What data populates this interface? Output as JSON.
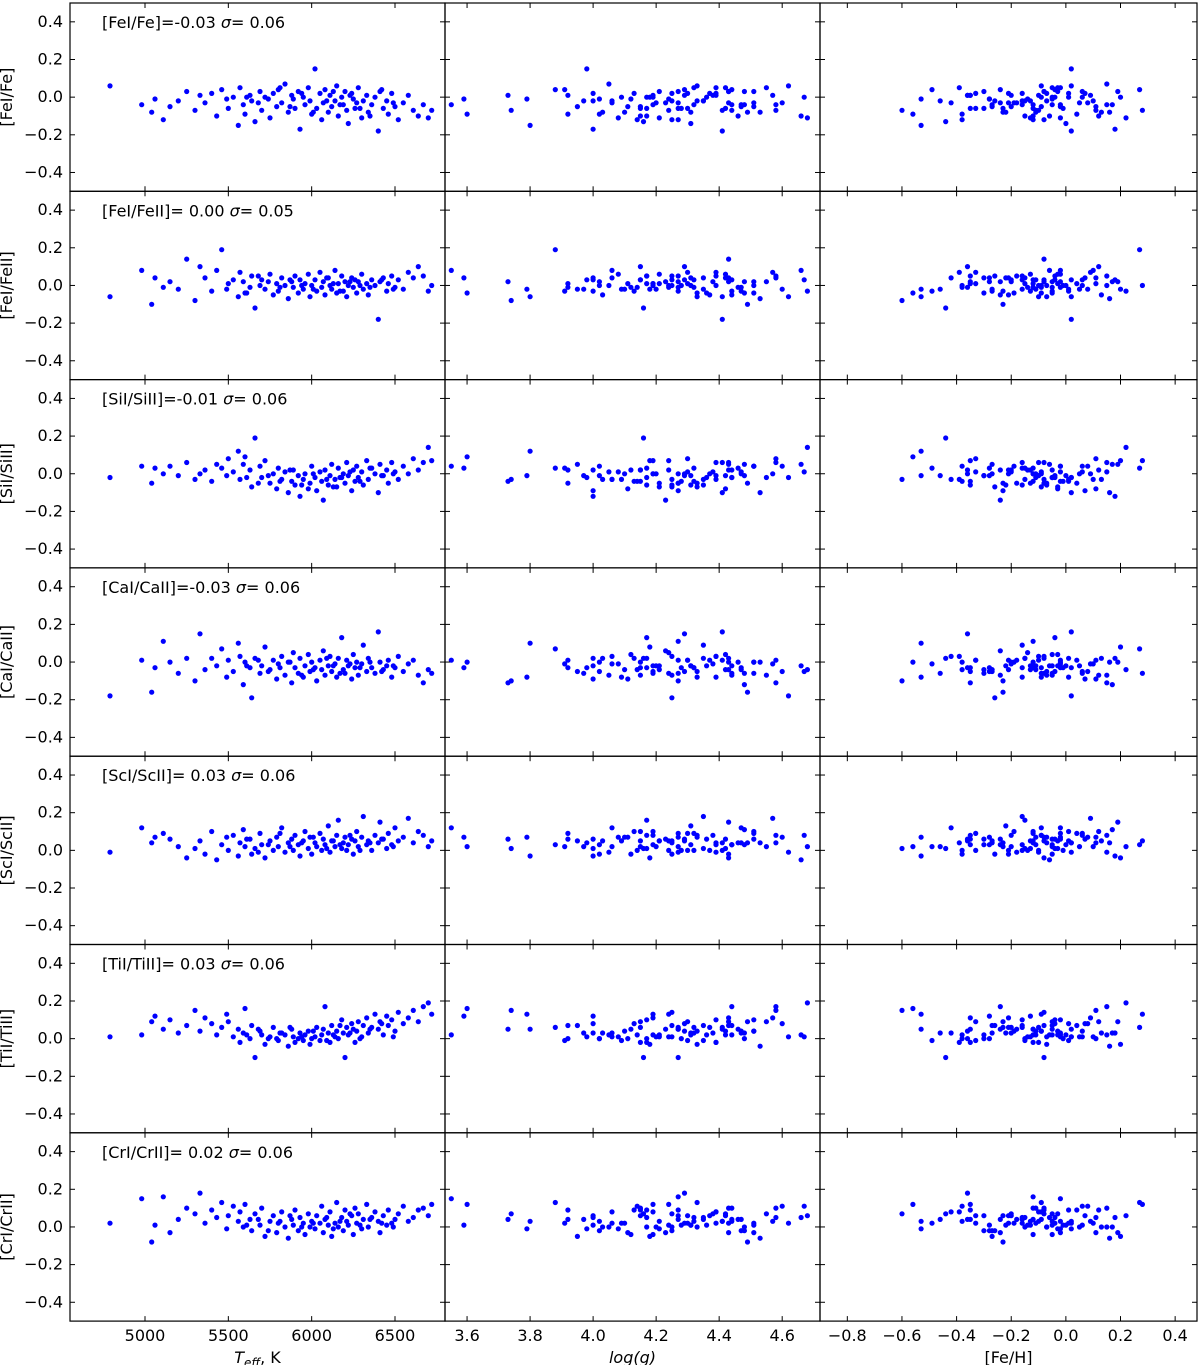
{
  "chart_data": {
    "type": "scatter",
    "layout": "7x3 grid, shared y per row, shared x per column",
    "columns": [
      {
        "xlabel_main": "T",
        "xlabel_sub": "eff",
        "xlabel_suffix": ", K",
        "xlim": [
          4550,
          6800
        ],
        "xticks": [
          5000,
          5500,
          6000,
          6500
        ],
        "xtick_labels": [
          "5000",
          "5500",
          "6000",
          "6500"
        ],
        "xkey": "teff"
      },
      {
        "xlabel": "log(g)",
        "xlim": [
          3.53,
          4.72
        ],
        "xticks": [
          3.6,
          3.8,
          4.0,
          4.2,
          4.4,
          4.6
        ],
        "xtick_labels": [
          "3.6",
          "3.8",
          "4.0",
          "4.2",
          "4.4",
          "4.6"
        ],
        "xkey": "logg"
      },
      {
        "xlabel": "[Fe/H]",
        "xlim": [
          -0.9,
          0.48
        ],
        "xticks": [
          -0.8,
          -0.6,
          -0.4,
          -0.2,
          0.0,
          0.2,
          0.4
        ],
        "xtick_labels": [
          "−0.8",
          "−0.6",
          "−0.4",
          "−0.2",
          "0.0",
          "0.2",
          "0.4"
        ],
        "xkey": "feh"
      }
    ],
    "ylim": [
      -0.5,
      0.5
    ],
    "yticks": [
      -0.4,
      -0.2,
      0.0,
      0.2,
      0.4
    ],
    "ytick_labels": [
      "−0.4",
      "−0.2",
      "0.0",
      "0.2",
      "0.4"
    ],
    "rows": [
      {
        "ylabel": "[FeI/Fe]",
        "annotation_text": "[FeI/Fe]=-0.03 ",
        "sigma_text": "= 0.06",
        "mean": -0.03,
        "sigma": 0.06
      },
      {
        "ylabel": "[FeI/FeII]",
        "annotation_text": "[FeI/FeII]= 0.00 ",
        "sigma_text": "= 0.05",
        "mean": 0.0,
        "sigma": 0.05
      },
      {
        "ylabel": "[SiI/SiII]",
        "annotation_text": "[SiI/SiII]=-0.01 ",
        "sigma_text": "= 0.06",
        "mean": -0.01,
        "sigma": 0.06
      },
      {
        "ylabel": "[CaI/CaII]",
        "annotation_text": "[CaI/CaII]=-0.03 ",
        "sigma_text": "= 0.06",
        "mean": -0.03,
        "sigma": 0.06
      },
      {
        "ylabel": "[ScI/ScII]",
        "annotation_text": "[ScI/ScII]= 0.03 ",
        "sigma_text": "= 0.06",
        "mean": 0.03,
        "sigma": 0.06
      },
      {
        "ylabel": "[TiI/TiII]",
        "annotation_text": "[TiI/TiII]= 0.03 ",
        "sigma_text": "= 0.06",
        "mean": 0.03,
        "sigma": 0.06
      },
      {
        "ylabel": "[CrI/CrII]",
        "annotation_text": "[CrI/CrII]= 0.02 ",
        "sigma_text": "= 0.06",
        "mean": 0.02,
        "sigma": 0.06
      }
    ],
    "stars": [
      [
        4790,
        4.62,
        0.02
      ],
      [
        4980,
        3.55,
        -0.02
      ],
      [
        5040,
        4.49,
        -0.23
      ],
      [
        5060,
        3.59,
        -0.28
      ],
      [
        5110,
        4.27,
        -0.12
      ],
      [
        5150,
        4.51,
        -0.02
      ],
      [
        5200,
        3.97,
        -0.46
      ],
      [
        5250,
        4.43,
        -0.08
      ],
      [
        5300,
        3.74,
        -0.6
      ],
      [
        5330,
        4.29,
        -0.36
      ],
      [
        5360,
        4.43,
        -0.21
      ],
      [
        5400,
        4.13,
        0.01
      ],
      [
        5430,
        4.66,
        -0.06
      ],
      [
        5460,
        3.88,
        0.27
      ],
      [
        5490,
        3.79,
        -0.53
      ],
      [
        5500,
        4.3,
        -0.33
      ],
      [
        5530,
        4.67,
        0.06
      ],
      [
        5560,
        3.8,
        -0.53
      ],
      [
        5570,
        4.39,
        -0.39
      ],
      [
        5590,
        4.48,
        0.17
      ],
      [
        5600,
        3.6,
        -0.56
      ],
      [
        5630,
        3.92,
        -0.36
      ],
      [
        5640,
        4.25,
        -0.26
      ],
      [
        5660,
        4.16,
        -0.44
      ],
      [
        5690,
        4.51,
        0.06
      ],
      [
        5700,
        4.44,
        -0.11
      ],
      [
        5720,
        4.18,
        0.2
      ],
      [
        5750,
        4.21,
        -0.13
      ],
      [
        5770,
        4.37,
        -0.21
      ],
      [
        5790,
        4.11,
        0.11
      ],
      [
        5800,
        3.91,
        -0.49
      ],
      [
        5820,
        4.06,
        -0.42
      ],
      [
        5840,
        4.05,
        0.15
      ],
      [
        5860,
        4.53,
        0.16
      ],
      [
        5880,
        3.73,
        -0.35
      ],
      [
        5890,
        4.24,
        -0.14
      ],
      [
        5900,
        4.17,
        -0.35
      ],
      [
        5920,
        4.48,
        -0.3
      ],
      [
        5930,
        4.0,
        0.18
      ],
      [
        5950,
        4.09,
        0.01
      ],
      [
        5960,
        4.19,
        -0.12
      ],
      [
        5980,
        4.42,
        -0.03
      ],
      [
        5990,
        4.33,
        -0.07
      ],
      [
        6000,
        4.02,
        -0.38
      ],
      [
        6020,
        3.98,
        0.02
      ],
      [
        6030,
        4.27,
        -0.23
      ],
      [
        6050,
        4.3,
        -0.33
      ],
      [
        6060,
        4.14,
        -0.38
      ],
      [
        6070,
        4.23,
        -0.24
      ],
      [
        6080,
        4.44,
        -0.24
      ],
      [
        6100,
        4.31,
        -0.22
      ],
      [
        6110,
        4.39,
        -0.1
      ],
      [
        6120,
        3.95,
        -0.27
      ],
      [
        6140,
        4.06,
        0.1
      ],
      [
        6150,
        4.33,
        -0.09
      ],
      [
        6160,
        4.17,
        -0.15
      ],
      [
        6180,
        4.17,
        -0.04
      ],
      [
        6190,
        4.47,
        -0.27
      ],
      [
        6200,
        4.27,
        -0.08
      ],
      [
        6210,
        4.41,
        -0.1
      ],
      [
        6220,
        4.31,
        0.0
      ],
      [
        6240,
        4.0,
        0.07
      ],
      [
        6250,
        4.12,
        -0.05
      ],
      [
        6260,
        4.15,
        -0.12
      ],
      [
        6270,
        4.51,
        -0.19
      ],
      [
        6280,
        4.55,
        -0.05
      ],
      [
        6300,
        4.08,
        -0.02
      ],
      [
        6310,
        4.35,
        -0.16
      ],
      [
        6330,
        4.19,
        -0.35
      ],
      [
        6340,
        4.03,
        0.13
      ],
      [
        6360,
        4.32,
        -0.16
      ],
      [
        6380,
        4.19,
        -0.09
      ],
      [
        6400,
        4.41,
        0.02
      ],
      [
        6410,
        4.43,
        0.19
      ],
      [
        6430,
        4.42,
        -0.3
      ],
      [
        6450,
        4.0,
        -0.13
      ],
      [
        6460,
        3.92,
        0.04
      ],
      [
        6480,
        4.39,
        -0.16
      ],
      [
        6500,
        4.47,
        -0.09
      ],
      [
        6520,
        4.25,
        -0.08
      ],
      [
        6550,
        4.6,
        0.08
      ],
      [
        6580,
        4.57,
        0.09
      ],
      [
        6610,
        4.58,
        0.11
      ],
      [
        6640,
        4.15,
        0.12
      ],
      [
        6670,
        4.58,
        0.15
      ],
      [
        6700,
        4.68,
        0.22
      ],
      [
        6720,
        4.24,
        0.28
      ],
      [
        5610,
        4.36,
        -0.05
      ],
      [
        5680,
        4.27,
        -0.18
      ],
      [
        5740,
        4.02,
        -0.28
      ],
      [
        5810,
        4.32,
        -0.02
      ],
      [
        5870,
        4.15,
        -0.2
      ],
      [
        5940,
        4.25,
        -0.07
      ],
      [
        6010,
        4.1,
        -0.11
      ],
      [
        6090,
        4.35,
        -0.15
      ],
      [
        6130,
        4.21,
        -0.03
      ],
      [
        6170,
        4.44,
        -0.05
      ],
      [
        6230,
        4.38,
        -0.2
      ],
      [
        6290,
        4.28,
        -0.01
      ],
      [
        6350,
        4.46,
        -0.12
      ],
      [
        6420,
        4.29,
        -0.04
      ],
      [
        6490,
        4.2,
        0.05
      ]
    ],
    "residuals": {
      "FeI_Fe": [
        0.06,
        -0.04,
        -0.08,
        -0.01,
        -0.12,
        -0.05,
        -0.02,
        0.03,
        -0.07,
        0.01,
        -0.03,
        0.02,
        -0.1,
        0.04,
        -0.01,
        -0.06,
        0.0,
        -0.15,
        0.05,
        -0.04,
        -0.09,
        0.01,
        -0.02,
        -0.13,
        0.03,
        -0.07,
        0.0,
        -0.11,
        0.02,
        -0.05,
        0.04,
        -0.03,
        0.07,
        -0.08,
        0.01,
        -0.01,
        -0.06,
        0.03,
        -0.17,
        0.0,
        -0.04,
        0.05,
        -0.02,
        -0.09,
        0.15,
        -0.06,
        0.02,
        -0.12,
        -0.03,
        0.04,
        -0.08,
        0.01,
        -0.05,
        -0.02,
        0.06,
        -0.1,
        0.0,
        -0.04,
        0.03,
        -0.07,
        -0.14,
        0.02,
        -0.01,
        -0.06,
        -0.03,
        0.05,
        -0.11,
        -0.02,
        0.01,
        -0.08,
        -0.04,
        0.0,
        -0.18,
        0.03,
        -0.06,
        -0.02,
        -0.09,
        0.02,
        -0.05,
        -0.12,
        -0.03,
        0.01,
        -0.07,
        -0.1,
        -0.04,
        -0.11,
        -0.07,
        0.0,
        -0.03,
        -0.01,
        0.05,
        -0.05,
        0.02,
        -0.08,
        -0.02,
        0.03,
        -0.04,
        0.01,
        -0.06,
        -0.1,
        0.04,
        -0.03,
        0.07
      ],
      "FeI_FeII": [
        -0.06,
        0.08,
        -0.1,
        0.04,
        -0.01,
        0.02,
        -0.02,
        0.14,
        -0.08,
        0.1,
        0.04,
        -0.03,
        0.08,
        0.19,
        -0.02,
        0.01,
        0.03,
        -0.06,
        0.07,
        0.02,
        -0.04,
        -0.01,
        0.05,
        -0.12,
        0.0,
        0.03,
        -0.02,
        0.06,
        -0.05,
        0.01,
        -0.03,
        0.04,
        0.0,
        -0.07,
        0.02,
        -0.01,
        0.05,
        -0.04,
        0.03,
        -0.02,
        0.01,
        0.06,
        -0.06,
        0.0,
        0.03,
        -0.03,
        0.07,
        -0.01,
        0.02,
        -0.05,
        0.04,
        0.0,
        -0.02,
        0.08,
        -0.04,
        0.01,
        0.05,
        -0.03,
        0.02,
        -0.06,
        0.0,
        0.04,
        -0.01,
        0.03,
        -0.04,
        0.02,
        0.06,
        -0.02,
        0.01,
        -0.05,
        0.03,
        0.0,
        -0.18,
        0.02,
        0.04,
        -0.03,
        0.01,
        0.05,
        -0.01,
        0.03,
        -0.02,
        0.07,
        0.04,
        0.1,
        0.05,
        -0.03,
        0.0,
        -0.04,
        0.05,
        0.02,
        -0.01,
        0.03,
        0.0,
        -0.02,
        0.04,
        0.01,
        -0.03,
        0.02,
        0.0,
        -0.01,
        0.03,
        -0.02,
        0.01
      ],
      "SiI_SiII": [
        -0.02,
        0.04,
        -0.05,
        0.03,
        0.0,
        0.04,
        -0.01,
        0.06,
        -0.03,
        0.0,
        0.02,
        -0.04,
        0.05,
        0.03,
        -0.01,
        0.08,
        0.01,
        0.12,
        -0.03,
        0.05,
        0.09,
        0.02,
        -0.07,
        0.19,
        0.04,
        -0.02,
        0.07,
        -0.05,
        0.0,
        -0.08,
        0.03,
        -0.03,
        0.01,
        -0.1,
        -0.04,
        0.02,
        -0.06,
        -0.01,
        -0.12,
        -0.03,
        0.0,
        -0.08,
        -0.05,
        0.04,
        -0.02,
        -0.09,
        0.01,
        -0.04,
        -0.14,
        0.02,
        -0.06,
        -0.01,
        0.05,
        -0.03,
        -0.07,
        0.03,
        -0.02,
        0.0,
        -0.05,
        0.06,
        -0.01,
        -0.09,
        0.02,
        -0.04,
        0.04,
        -0.02,
        0.01,
        -0.06,
        0.07,
        -0.03,
        0.03,
        0.0,
        -0.1,
        0.05,
        -0.01,
        0.02,
        -0.05,
        0.06,
        0.01,
        -0.03,
        0.04,
        0.0,
        0.08,
        0.02,
        0.06,
        0.14,
        0.07,
        -0.02,
        -0.05,
        -0.01,
        -0.04,
        0.02,
        -0.06,
        0.0,
        -0.03,
        -0.07,
        -0.02,
        0.01,
        -0.04,
        0.03,
        -0.01,
        0.0,
        -0.03
      ],
      "CaI_CaII": [
        -0.18,
        0.01,
        -0.16,
        -0.03,
        0.11,
        0.0,
        -0.06,
        0.02,
        -0.1,
        0.15,
        -0.04,
        0.02,
        -0.02,
        0.07,
        -0.08,
        0.01,
        -0.05,
        0.1,
        0.03,
        -0.12,
        0.0,
        -0.03,
        -0.19,
        0.02,
        -0.06,
        -0.02,
        0.08,
        -0.04,
        0.01,
        -0.09,
        -0.01,
        0.03,
        -0.07,
        0.0,
        -0.11,
        0.05,
        -0.03,
        -0.06,
        0.02,
        -0.08,
        -0.02,
        0.04,
        -0.05,
        0.0,
        -0.03,
        -0.1,
        0.01,
        -0.04,
        0.06,
        -0.07,
        -0.02,
        0.03,
        -0.05,
        -0.01,
        -0.08,
        0.02,
        0.13,
        -0.04,
        -0.06,
        0.01,
        -0.02,
        -0.09,
        0.04,
        -0.03,
        0.0,
        -0.07,
        -0.01,
        0.09,
        -0.05,
        0.02,
        -0.03,
        -0.06,
        0.16,
        0.0,
        -0.04,
        -0.02,
        0.01,
        -0.08,
        -0.03,
        0.03,
        -0.05,
        -0.01,
        0.01,
        -0.07,
        -0.11,
        -0.04,
        -0.06,
        -0.02,
        0.01,
        -0.05,
        -0.03,
        0.0,
        -0.07,
        -0.04,
        0.02,
        -0.02,
        -0.06,
        -0.01,
        -0.03,
        0.0,
        -0.05,
        -0.02,
        0.03
      ],
      "ScI_ScII": [
        -0.01,
        0.12,
        0.04,
        0.07,
        0.09,
        0.06,
        0.02,
        -0.04,
        0.01,
        0.05,
        -0.02,
        0.1,
        -0.05,
        0.03,
        0.07,
        0.0,
        0.08,
        -0.03,
        0.04,
        0.11,
        0.02,
        0.06,
        -0.02,
        0.01,
        0.09,
        0.03,
        -0.04,
        0.05,
        0.0,
        0.07,
        0.02,
        0.12,
        -0.01,
        0.04,
        0.06,
        0.0,
        0.08,
        0.03,
        -0.03,
        0.05,
        0.1,
        0.01,
        0.07,
        -0.02,
        0.04,
        0.02,
        0.09,
        0.0,
        0.06,
        0.03,
        0.13,
        -0.01,
        0.05,
        0.02,
        0.08,
        0.16,
        0.01,
        0.04,
        0.07,
        0.0,
        0.03,
        0.06,
        -0.02,
        0.05,
        0.1,
        0.02,
        0.07,
        0.18,
        0.03,
        0.05,
        0.0,
        0.08,
        0.04,
        0.15,
        0.06,
        0.01,
        0.09,
        0.03,
        0.12,
        0.05,
        0.07,
        0.17,
        0.04,
        0.1,
        0.08,
        0.02,
        0.05,
        0.06,
        -0.01,
        0.03,
        0.09,
        0.02,
        0.04,
        0.07,
        0.01,
        0.05,
        0.03,
        0.08,
        0.0,
        0.04,
        0.06,
        0.02,
        0.07
      ],
      "TiI_TiII": [
        0.01,
        0.02,
        0.09,
        0.12,
        0.05,
        0.1,
        0.03,
        0.07,
        0.15,
        0.04,
        0.11,
        0.08,
        0.02,
        0.06,
        0.13,
        0.09,
        0.01,
        0.05,
        -0.02,
        0.03,
        0.16,
        0.0,
        0.07,
        -0.1,
        0.04,
        0.02,
        -0.03,
        0.01,
        0.06,
        0.0,
        -0.01,
        0.03,
        0.02,
        -0.04,
        0.05,
        0.01,
        -0.02,
        0.0,
        0.03,
        -0.01,
        0.02,
        0.04,
        -0.03,
        0.0,
        0.01,
        0.06,
        -0.01,
        0.02,
        0.05,
        0.17,
        0.03,
        -0.02,
        0.07,
        0.01,
        0.04,
        0.0,
        0.1,
        0.03,
        -0.1,
        0.06,
        0.02,
        0.08,
        0.05,
        -0.02,
        0.04,
        0.09,
        0.01,
        0.07,
        0.11,
        0.03,
        0.06,
        0.13,
        0.05,
        0.09,
        0.02,
        0.12,
        0.07,
        0.1,
        0.04,
        0.14,
        0.08,
        0.11,
        0.15,
        0.09,
        0.17,
        0.19,
        0.13,
        0.02,
        0.05,
        0.0,
        0.03,
        0.06,
        0.01,
        0.04,
        -0.01,
        0.02,
        0.07,
        0.03,
        0.0,
        0.05,
        0.08,
        0.01,
        0.04
      ],
      "CrI_CrII": [
        0.02,
        0.15,
        -0.08,
        0.01,
        0.16,
        -0.03,
        0.04,
        0.1,
        0.07,
        0.18,
        0.02,
        0.09,
        0.05,
        0.13,
        -0.01,
        0.06,
        0.11,
        0.03,
        0.08,
        0.0,
        0.12,
        0.04,
        -0.02,
        0.07,
        0.01,
        0.1,
        -0.05,
        0.03,
        0.06,
        -0.03,
        0.02,
        0.08,
        0.0,
        -0.06,
        0.04,
        0.01,
        0.09,
        -0.02,
        0.05,
        0.02,
        -0.04,
        0.07,
        0.0,
        0.03,
        -0.01,
        0.06,
        0.02,
        0.11,
        -0.03,
        0.04,
        0.01,
        0.08,
        -0.05,
        0.02,
        0.13,
        0.0,
        0.05,
        -0.02,
        0.09,
        0.03,
        0.01,
        0.06,
        -0.04,
        0.1,
        0.02,
        0.07,
        -0.01,
        0.04,
        0.12,
        0.0,
        0.05,
        0.08,
        0.03,
        -0.03,
        0.06,
        0.01,
        0.09,
        0.02,
        0.04,
        0.07,
        0.11,
        0.03,
        0.05,
        0.09,
        0.1,
        0.06,
        0.12,
        0.01,
        0.04,
        -0.02,
        0.03,
        0.06,
        0.0,
        0.02,
        0.05,
        -0.01,
        0.03,
        0.07,
        0.01,
        0.04,
        0.02,
        0.0,
        0.06
      ]
    },
    "residual_order": [
      "FeI_Fe",
      "FeI_FeII",
      "SiI_SiII",
      "CaI_CaII",
      "ScI_ScII",
      "TiI_TiII",
      "CrI_CrII"
    ],
    "marker_color": "#0000ff",
    "sigma_symbol": "σ"
  }
}
